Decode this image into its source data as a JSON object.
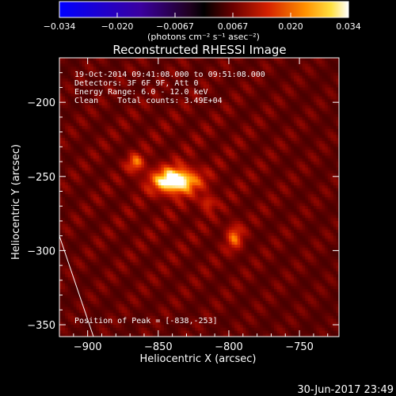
{
  "chart_data": {
    "type": "heatmap",
    "title": "Reconstructed RHESSI Image",
    "xlabel": "Heliocentric X (arcsec)",
    "ylabel": "Heliocentric Y (arcsec)",
    "xlim": [
      -920,
      -722
    ],
    "ylim": [
      -358,
      -170
    ],
    "x_ticks": [
      -900,
      -850,
      -800,
      -750
    ],
    "y_ticks": [
      -200,
      -250,
      -300,
      -350
    ],
    "x_tick_labels": [
      "−900",
      "−850",
      "−800",
      "−750"
    ],
    "y_tick_labels": [
      "−200",
      "−250",
      "−300",
      "−350"
    ],
    "colorbar": {
      "min": -0.034,
      "max": 0.034,
      "ticks": [
        "−0.034",
        "−0.020",
        "−0.0067",
        "0.0067",
        "0.020",
        "0.034"
      ],
      "unit_label": "(photons cm⁻² s⁻¹ asec⁻²)"
    },
    "info_lines": [
      "19-Oct-2014 09:41:08.000 to 09:51:08.000",
      "Detectors: 3F 6F 9F, Att 0",
      "Energy Range: 6.0 - 12.0 keV",
      "Clean    Total counts: 3.49E+04"
    ],
    "peak_label": "Position of Peak = [-838,-253]",
    "peak": [
      -838,
      -253
    ],
    "sources": [
      {
        "x": -838,
        "y": -253,
        "sx": 11,
        "sy": 6,
        "amp": 0.034
      },
      {
        "x": -866,
        "y": -241,
        "sx": 4,
        "sy": 4,
        "amp": 0.016
      },
      {
        "x": -796,
        "y": -291,
        "sx": 4,
        "sy": 6,
        "amp": 0.015
      },
      {
        "x": -815,
        "y": -268,
        "sx": 4,
        "sy": 4,
        "amp": 0.011
      }
    ],
    "grid": false
  },
  "footer": {
    "timestamp": "30-Jun-2017 23:49"
  },
  "colors": {
    "background": "#000000",
    "foreground": "#ffffff"
  }
}
